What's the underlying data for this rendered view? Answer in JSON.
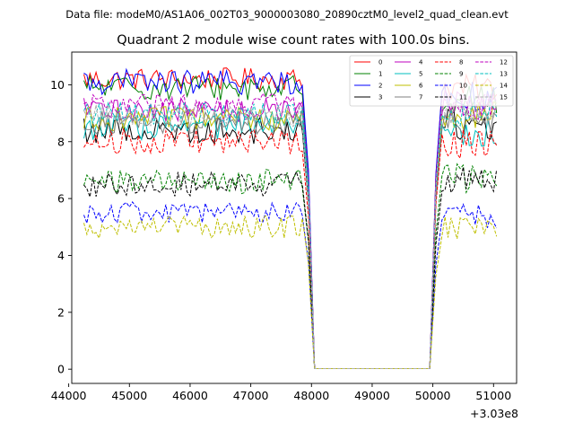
{
  "suptitle": "Data file: modeM0/AS1A06_002T03_9000003080_20890cztM0_level2_quad_clean.evt",
  "chart_data": {
    "type": "line",
    "title": "Quadrant 2 module wise count rates with 100.0s bins.",
    "xlabel": "",
    "ylabel": "",
    "x_offset_label": "+3.03e8",
    "xlim": [
      44050,
      51380
    ],
    "ylim": [
      -0.5,
      11.15
    ],
    "xticks": [
      44000,
      45000,
      46000,
      47000,
      48000,
      49000,
      50000,
      51000
    ],
    "yticks": [
      0,
      2,
      4,
      6,
      8,
      10
    ],
    "gap": {
      "start": 48050,
      "end": 49950,
      "value": 0.02
    },
    "drop_to_gap": {
      "x": 47950,
      "fraction": 0.7
    },
    "recover_from_gap": {
      "x": 50050,
      "fraction": 0.7
    },
    "segment1": {
      "start": 44250,
      "end": 47850,
      "step": 50
    },
    "segment2": {
      "start": 50150,
      "end": 51050,
      "step": 50
    },
    "grid": false,
    "legend_position": "top-right",
    "series": [
      {
        "name": "0",
        "color": "#ff0000",
        "dash": "solid",
        "level1": 10.2,
        "level2": 9.9,
        "noise": 0.18
      },
      {
        "name": "1",
        "color": "#008000",
        "dash": "solid",
        "level1": 9.9,
        "level2": 9.5,
        "noise": 0.2
      },
      {
        "name": "2",
        "color": "#0000ff",
        "dash": "solid",
        "level1": 10.1,
        "level2": 9.6,
        "noise": 0.2
      },
      {
        "name": "3",
        "color": "#000000",
        "dash": "solid",
        "level1": 8.4,
        "level2": 8.6,
        "noise": 0.22
      },
      {
        "name": "4",
        "color": "#bf00bf",
        "dash": "solid",
        "level1": 9.1,
        "level2": 9.3,
        "noise": 0.2
      },
      {
        "name": "5",
        "color": "#00bfbf",
        "dash": "solid",
        "level1": 8.5,
        "level2": 8.3,
        "noise": 0.2
      },
      {
        "name": "6",
        "color": "#bfbf00",
        "dash": "solid",
        "level1": 8.8,
        "level2": 8.9,
        "noise": 0.2
      },
      {
        "name": "7",
        "color": "#808080",
        "dash": "solid",
        "level1": 8.7,
        "level2": 8.7,
        "noise": 0.2
      },
      {
        "name": "8",
        "color": "#ff0000",
        "dash": "dashed",
        "level1": 8.0,
        "level2": 7.9,
        "noise": 0.2
      },
      {
        "name": "9",
        "color": "#008000",
        "dash": "dashed",
        "level1": 6.6,
        "level2": 6.7,
        "noise": 0.2
      },
      {
        "name": "10",
        "color": "#0000ff",
        "dash": "dashed",
        "level1": 5.5,
        "level2": 5.4,
        "noise": 0.18
      },
      {
        "name": "11",
        "color": "#000000",
        "dash": "dashed",
        "level1": 6.5,
        "level2": 6.7,
        "noise": 0.2
      },
      {
        "name": "12",
        "color": "#bf00bf",
        "dash": "dashed",
        "level1": 9.3,
        "level2": 9.3,
        "noise": 0.18
      },
      {
        "name": "13",
        "color": "#00bfbf",
        "dash": "dashed",
        "level1": 9.0,
        "level2": 9.0,
        "noise": 0.18
      },
      {
        "name": "14",
        "color": "#bfbf00",
        "dash": "dashed",
        "level1": 5.0,
        "level2": 5.0,
        "noise": 0.18
      },
      {
        "name": "15",
        "color": "#b0b0b0",
        "dash": "dashed",
        "level1": 8.9,
        "level2": 9.0,
        "noise": 0.18
      }
    ]
  }
}
